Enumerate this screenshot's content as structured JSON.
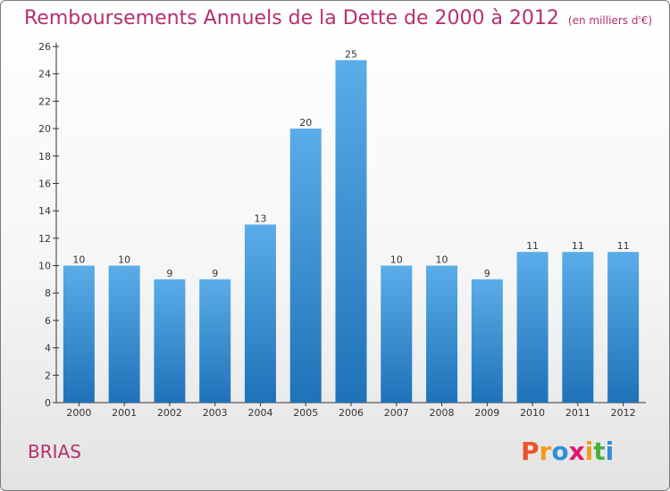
{
  "title": "Remboursements Annuels de la Dette de 2000 à 2012",
  "unit": "(en milliers d'€)",
  "commune": "BRIAS",
  "logo": "Proxiti",
  "colors": {
    "title": "#b5306e",
    "bar_top": "#5aade8",
    "bar_bottom": "#1f72b8",
    "logo_letters": [
      "#e8542a",
      "#f29b1c",
      "#2f8fd8",
      "#e01b6f",
      "#f29b1c",
      "#4cae3f",
      "#2f8fd8"
    ]
  },
  "chart_data": {
    "type": "bar",
    "title": "Remboursements Annuels de la Dette de 2000 à 2012",
    "unit": "(en milliers d'€)",
    "categories": [
      "2000",
      "2001",
      "2002",
      "2003",
      "2004",
      "2005",
      "2006",
      "2007",
      "2008",
      "2009",
      "2010",
      "2011",
      "2012"
    ],
    "values": [
      10,
      10,
      9,
      9,
      13,
      20,
      25,
      10,
      10,
      9,
      11,
      11,
      11
    ],
    "ylim": [
      0,
      26
    ],
    "yticks": [
      0,
      2,
      4,
      6,
      8,
      10,
      12,
      14,
      16,
      18,
      20,
      22,
      24,
      26
    ],
    "grid": false,
    "legend": "none"
  }
}
